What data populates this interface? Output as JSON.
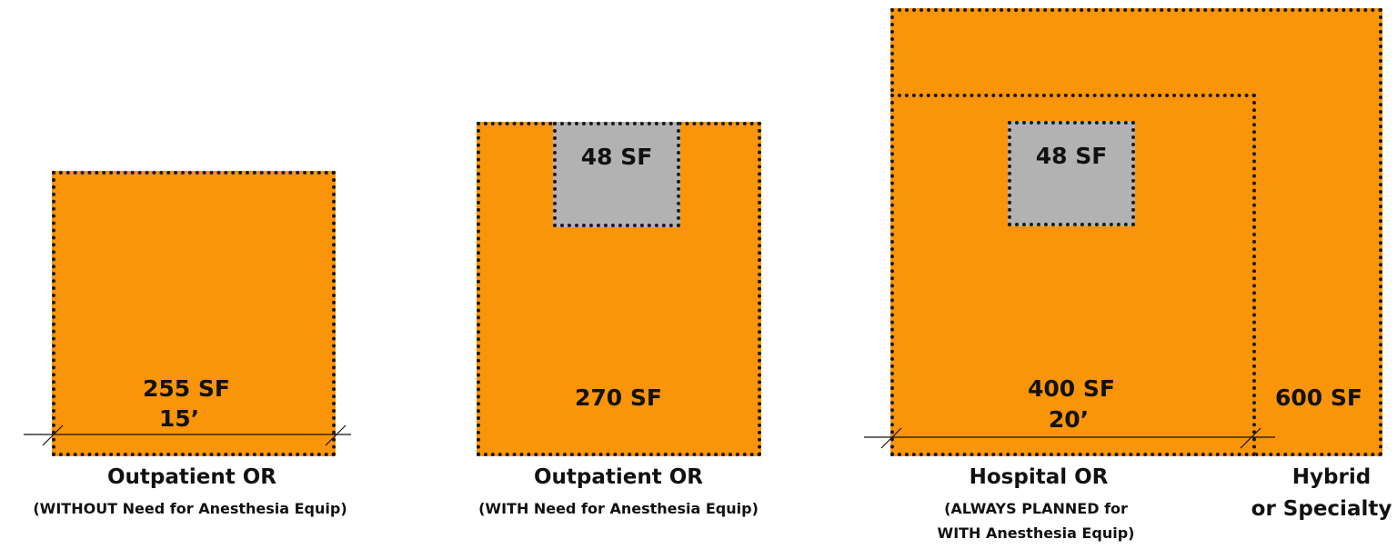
{
  "rooms": {
    "outpatient_without": {
      "area": "255 SF",
      "dimension": "15’",
      "title": "Outpatient OR",
      "subtitle": "(WITHOUT Need for Anesthesia Equip)"
    },
    "outpatient_with": {
      "area": "270 SF",
      "anesthesia_area": "48 SF",
      "title": "Outpatient OR",
      "subtitle": "(WITH Need for Anesthesia Equip)"
    },
    "hospital": {
      "area": "400 SF",
      "anesthesia_area": "48 SF",
      "dimension": "20’",
      "title": "Hospital OR",
      "subtitle_line1": "(ALWAYS PLANNED for",
      "subtitle_line2": "WITH Anesthesia Equip)"
    },
    "hybrid": {
      "area": "600 SF",
      "title_line1": "Hybrid",
      "title_line2": "or Specialty"
    }
  },
  "colors": {
    "room_fill": "#fa9409",
    "anesthesia_fill": "#b2b2b2",
    "border": "#1a1a1a"
  }
}
